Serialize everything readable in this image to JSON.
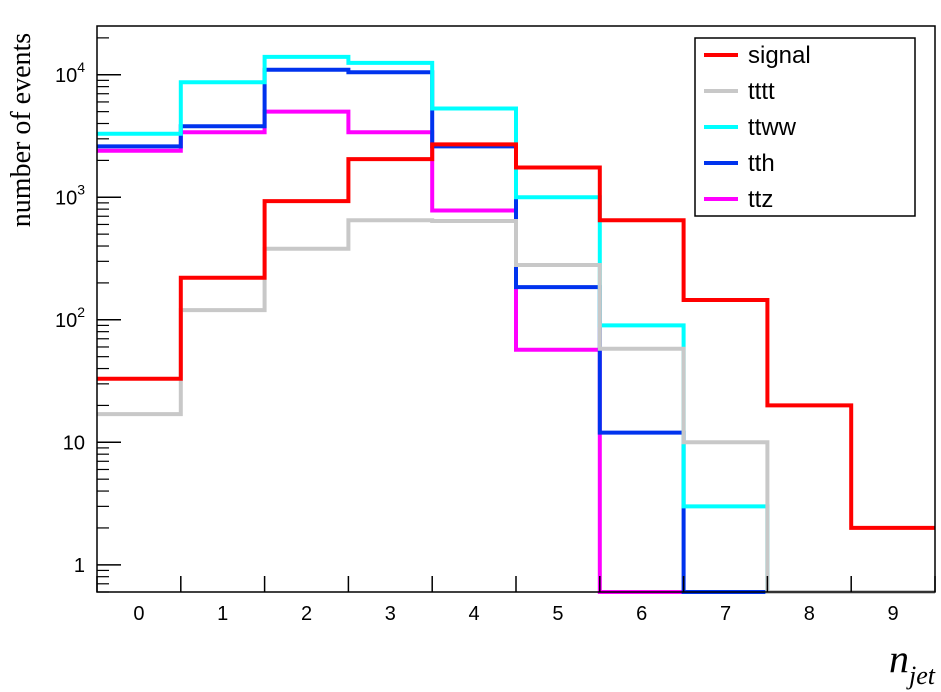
{
  "chart_data": {
    "type": "histogram",
    "title": "",
    "xlabel": "n",
    "xlabel_sub": "jet",
    "ylabel": "number of events",
    "x_tick_labels": [
      "0",
      "1",
      "2",
      "3",
      "4",
      "5",
      "6",
      "7",
      "8",
      "9"
    ],
    "y_tick_labels": [
      {
        "value": 1,
        "base": "1",
        "exp": ""
      },
      {
        "value": 10,
        "base": "10",
        "exp": ""
      },
      {
        "value": 100,
        "base": "10",
        "exp": "2"
      },
      {
        "value": 1000,
        "base": "10",
        "exp": "3"
      },
      {
        "value": 10000,
        "base": "10",
        "exp": "4"
      }
    ],
    "yscale": "log",
    "xlim": [
      -0.5,
      9.5
    ],
    "ylim": [
      0.6,
      25000
    ],
    "bins": [
      0,
      1,
      2,
      3,
      4,
      5,
      6,
      7,
      8,
      9
    ],
    "legend_position": "top-right",
    "series": [
      {
        "name": "signal",
        "color": "#ff0000",
        "values": [
          33,
          220,
          930,
          2050,
          2700,
          1750,
          650,
          145,
          20,
          2
        ]
      },
      {
        "name": "tttt",
        "color": "#c8c8c8",
        "values": [
          17,
          120,
          380,
          650,
          640,
          280,
          58,
          10,
          0,
          0
        ]
      },
      {
        "name": "ttww",
        "color": "#00ffff",
        "values": [
          3300,
          8700,
          14000,
          12500,
          5300,
          1000,
          90,
          3,
          0,
          0
        ]
      },
      {
        "name": "tth",
        "color": "#0033ee",
        "values": [
          2600,
          3800,
          11000,
          10500,
          2600,
          185,
          12,
          0,
          0,
          0
        ]
      },
      {
        "name": "ttz",
        "color": "#ff00ff",
        "values": [
          2400,
          3400,
          5000,
          3400,
          780,
          57,
          0,
          0,
          0,
          0
        ]
      }
    ]
  }
}
